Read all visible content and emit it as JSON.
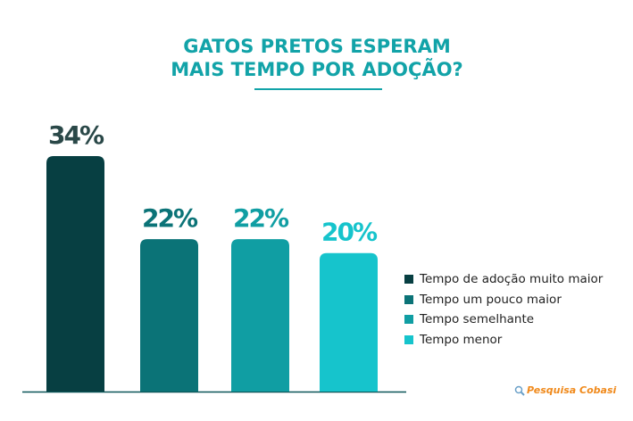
{
  "chart_data": {
    "type": "bar",
    "title": [
      "GATOS PRETOS ESPERAM",
      "MAIS TEMPO POR ADOÇÃO?"
    ],
    "categories": [
      "Tempo de adoção muito maior",
      "Tempo um pouco maior",
      "Tempo semelhante",
      "Tempo menor"
    ],
    "values": [
      34,
      22,
      22,
      20
    ],
    "value_labels": [
      "34%",
      "22%",
      "22%",
      "20%"
    ],
    "colors": [
      "#073f42",
      "#0b7377",
      "#109ea3",
      "#16c4cc"
    ],
    "legend": "right",
    "source": "Pesquisa Cobasi"
  }
}
